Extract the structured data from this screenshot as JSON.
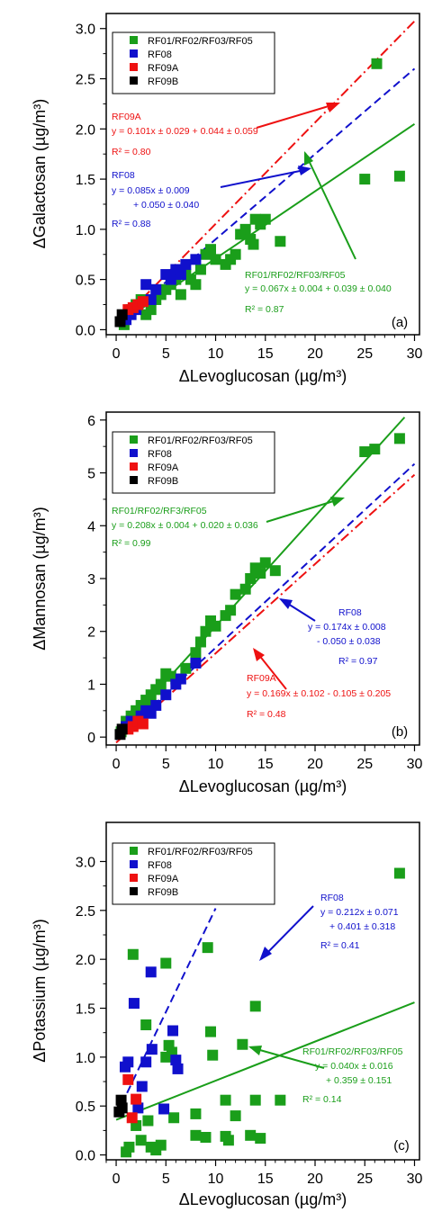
{
  "chart_data": [
    {
      "type": "scatter",
      "panel_label": "(a)",
      "xlabel": "ΔLevoglucosan (µg/m³)",
      "ylabel": "ΔGalactosan (µg/m³)",
      "xlim": [
        -1,
        30.5
      ],
      "ylim": [
        -0.05,
        3.15
      ],
      "xticks": [
        0,
        5,
        10,
        15,
        20,
        25,
        30
      ],
      "yticks": [
        0.0,
        0.5,
        1.0,
        1.5,
        2.0,
        2.5,
        3.0
      ],
      "ytick_labels": [
        "0.0",
        "0.5",
        "1.0",
        "1.5",
        "2.0",
        "2.5",
        "3.0"
      ],
      "legend": [
        "RF01/RF02/RF03/RF05",
        "RF08",
        "RF09A",
        "RF09B"
      ],
      "legend_position": "top-left",
      "series": [
        {
          "name": "RF01/RF02/RF03/RF05",
          "color": "#1a9e1a",
          "points": [
            [
              0.8,
              0.05
            ],
            [
              1.5,
              0.2
            ],
            [
              2,
              0.25
            ],
            [
              2.5,
              0.3
            ],
            [
              3,
              0.15
            ],
            [
              3.5,
              0.2
            ],
            [
              4,
              0.3
            ],
            [
              4.5,
              0.35
            ],
            [
              5,
              0.4
            ],
            [
              5.5,
              0.45
            ],
            [
              6,
              0.5
            ],
            [
              6.5,
              0.35
            ],
            [
              7,
              0.55
            ],
            [
              7.5,
              0.5
            ],
            [
              8,
              0.45
            ],
            [
              8.5,
              0.6
            ],
            [
              9,
              0.75
            ],
            [
              9.5,
              0.8
            ],
            [
              10,
              0.7
            ],
            [
              11,
              0.65
            ],
            [
              11.5,
              0.7
            ],
            [
              12,
              0.75
            ],
            [
              12.5,
              0.95
            ],
            [
              13,
              1.0
            ],
            [
              13.5,
              0.9
            ],
            [
              14,
              1.1
            ],
            [
              14.5,
              1.05
            ],
            [
              15,
              1.1
            ],
            [
              13.8,
              0.85
            ],
            [
              16.5,
              0.88
            ],
            [
              25,
              1.5
            ],
            [
              28.5,
              1.53
            ],
            [
              26.2,
              2.65
            ]
          ]
        },
        {
          "name": "RF08",
          "color": "#1010cc",
          "points": [
            [
              1,
              0.1
            ],
            [
              1.5,
              0.15
            ],
            [
              2,
              0.2
            ],
            [
              3,
              0.45
            ],
            [
              3.5,
              0.3
            ],
            [
              4,
              0.4
            ],
            [
              5,
              0.55
            ],
            [
              5.5,
              0.5
            ],
            [
              6,
              0.6
            ],
            [
              6.5,
              0.55
            ],
            [
              7,
              0.65
            ],
            [
              8,
              0.7
            ]
          ]
        },
        {
          "name": "RF09A",
          "color": "#ee1111",
          "points": [
            [
              1.2,
              0.2
            ],
            [
              1.7,
              0.22
            ],
            [
              2.2,
              0.25
            ],
            [
              2.7,
              0.28
            ]
          ]
        },
        {
          "name": "RF09B",
          "color": "#000000",
          "points": [
            [
              0.4,
              0.08
            ],
            [
              0.6,
              0.15
            ]
          ]
        }
      ],
      "fit_lines": [
        {
          "series": "RF01/RF02/RF03/RF05",
          "style": "solid",
          "color": "#1a9e1a",
          "slope": 0.067,
          "intercept": 0.039,
          "x_range": [
            0,
            30
          ]
        },
        {
          "series": "RF08",
          "style": "dashed",
          "color": "#1010cc",
          "slope": 0.085,
          "intercept": 0.05,
          "x_range": [
            0,
            30
          ]
        },
        {
          "series": "RF09A",
          "style": "dashdot",
          "color": "#ee1111",
          "slope": 0.101,
          "intercept": 0.044,
          "x_range": [
            0,
            30
          ]
        }
      ],
      "annotations": [
        {
          "color": "#ee1111",
          "lines": [
            "RF09A",
            "y = 0.101x ± 0.029 + 0.044 ± 0.059",
            "R² = 0.80"
          ]
        },
        {
          "color": "#1010cc",
          "lines": [
            "RF08",
            "y = 0.085x ± 0.009",
            "+ 0.050 ± 0.040",
            "R² = 0.88"
          ]
        },
        {
          "color": "#1a9e1a",
          "lines": [
            "RF01/RF02/RF03/RF05",
            "y = 0.067x ± 0.004 + 0.039 ± 0.040",
            "R² = 0.87"
          ]
        }
      ]
    },
    {
      "type": "scatter",
      "panel_label": "(b)",
      "xlabel": "ΔLevoglucosan (µg/m³)",
      "ylabel": "ΔMannosan (µg/m³)",
      "xlim": [
        -1,
        30.5
      ],
      "ylim": [
        -0.15,
        6.15
      ],
      "xticks": [
        0,
        5,
        10,
        15,
        20,
        25,
        30
      ],
      "yticks": [
        0,
        1,
        2,
        3,
        4,
        5,
        6
      ],
      "ytick_labels": [
        "0",
        "1",
        "2",
        "3",
        "4",
        "5",
        "6"
      ],
      "legend": [
        "RF01/RF02/RF03/RF05",
        "RF08",
        "RF09A",
        "RF09B"
      ],
      "legend_position": "top-left",
      "series": [
        {
          "name": "RF01/RF02/RF03/RF05",
          "color": "#1a9e1a",
          "points": [
            [
              0.5,
              0.1
            ],
            [
              1,
              0.3
            ],
            [
              1.5,
              0.4
            ],
            [
              2,
              0.5
            ],
            [
              2.5,
              0.6
            ],
            [
              3,
              0.7
            ],
            [
              3.5,
              0.8
            ],
            [
              4,
              0.9
            ],
            [
              4.5,
              1.0
            ],
            [
              5,
              1.2
            ],
            [
              5.5,
              1.15
            ],
            [
              6,
              1.1
            ],
            [
              7,
              1.3
            ],
            [
              8,
              1.6
            ],
            [
              8.5,
              1.8
            ],
            [
              9,
              2.0
            ],
            [
              9.5,
              2.2
            ],
            [
              10,
              2.1
            ],
            [
              11,
              2.3
            ],
            [
              11.5,
              2.4
            ],
            [
              12,
              2.7
            ],
            [
              13,
              2.8
            ],
            [
              13.5,
              3.0
            ],
            [
              14,
              3.2
            ],
            [
              14.5,
              3.1
            ],
            [
              15,
              3.3
            ],
            [
              16,
              3.15
            ],
            [
              25,
              5.4
            ],
            [
              26,
              5.45
            ],
            [
              28.5,
              5.65
            ]
          ]
        },
        {
          "name": "RF08",
          "color": "#1010cc",
          "points": [
            [
              1,
              0.2
            ],
            [
              1.5,
              0.3
            ],
            [
              2,
              0.25
            ],
            [
              2.5,
              0.4
            ],
            [
              3,
              0.5
            ],
            [
              3.5,
              0.45
            ],
            [
              4,
              0.6
            ],
            [
              5,
              0.8
            ],
            [
              6,
              1.0
            ],
            [
              6.5,
              1.1
            ],
            [
              8,
              1.4
            ]
          ]
        },
        {
          "name": "RF09A",
          "color": "#ee1111",
          "points": [
            [
              1.2,
              0.15
            ],
            [
              1.7,
              0.2
            ],
            [
              2.2,
              0.3
            ],
            [
              2.7,
              0.25
            ]
          ]
        },
        {
          "name": "RF09B",
          "color": "#000000",
          "points": [
            [
              0.4,
              0.05
            ],
            [
              0.6,
              0.15
            ]
          ]
        }
      ],
      "fit_lines": [
        {
          "series": "RF01/RF02/RF03/RF05",
          "style": "solid",
          "color": "#1a9e1a",
          "slope": 0.208,
          "intercept": 0.02,
          "x_range": [
            0,
            29
          ]
        },
        {
          "series": "RF08",
          "style": "dashed",
          "color": "#1010cc",
          "slope": 0.174,
          "intercept": -0.05,
          "x_range": [
            0,
            30
          ]
        },
        {
          "series": "RF09A",
          "style": "dashdot",
          "color": "#ee1111",
          "slope": 0.169,
          "intercept": -0.105,
          "x_range": [
            0,
            30
          ]
        }
      ],
      "annotations": [
        {
          "color": "#1a9e1a",
          "lines": [
            "RF01/RF02/RF3/RF05",
            "y = 0.208x ± 0.004 + 0.020 ± 0.036",
            "R² = 0.99"
          ]
        },
        {
          "color": "#1010cc",
          "lines": [
            "RF08",
            "y = 0.174x ± 0.008",
            "- 0.050 ± 0.038",
            "R² = 0.97"
          ]
        },
        {
          "color": "#ee1111",
          "lines": [
            "RF09A",
            "y = 0.169x ± 0.102 - 0.105 ± 0.205",
            "R² = 0.48"
          ]
        }
      ]
    },
    {
      "type": "scatter",
      "panel_label": "(c)",
      "xlabel": "ΔLevoglucosan (µg/m³)",
      "ylabel": "ΔPotassium (µg/m³)",
      "xlim": [
        -1,
        30.5
      ],
      "ylim": [
        -0.05,
        3.4
      ],
      "xticks": [
        0,
        5,
        10,
        15,
        20,
        25,
        30
      ],
      "yticks": [
        0.0,
        0.5,
        1.0,
        1.5,
        2.0,
        2.5,
        3.0
      ],
      "ytick_labels": [
        "0.0",
        "0.5",
        "1.0",
        "1.5",
        "2.0",
        "2.5",
        "3.0"
      ],
      "legend": [
        "RF01/RF02/RF03/RF05",
        "RF08",
        "RF09A",
        "RF09B"
      ],
      "legend_position": "top-left",
      "series": [
        {
          "name": "RF01/RF02/RF03/RF05",
          "color": "#1a9e1a",
          "points": [
            [
              1,
              0.03
            ],
            [
              1.3,
              0.08
            ],
            [
              1.7,
              2.05
            ],
            [
              2,
              0.3
            ],
            [
              2.5,
              0.15
            ],
            [
              3,
              1.33
            ],
            [
              3.2,
              0.35
            ],
            [
              3.5,
              0.08
            ],
            [
              4,
              0.05
            ],
            [
              4.5,
              0.1
            ],
            [
              5,
              1.96
            ],
            [
              5,
              1.0
            ],
            [
              5.3,
              1.12
            ],
            [
              5.6,
              1.05
            ],
            [
              5.8,
              0.38
            ],
            [
              8,
              0.42
            ],
            [
              8,
              0.2
            ],
            [
              9,
              0.18
            ],
            [
              9.2,
              2.12
            ],
            [
              9.5,
              1.26
            ],
            [
              9.7,
              1.02
            ],
            [
              11,
              0.56
            ],
            [
              11,
              0.19
            ],
            [
              11.3,
              0.15
            ],
            [
              12,
              0.4
            ],
            [
              12.7,
              1.13
            ],
            [
              13.5,
              0.2
            ],
            [
              14,
              0.56
            ],
            [
              14,
              1.52
            ],
            [
              14.5,
              0.17
            ],
            [
              16.5,
              0.56
            ],
            [
              28.5,
              2.88
            ]
          ]
        },
        {
          "name": "RF08",
          "color": "#1010cc",
          "points": [
            [
              0.9,
              0.9
            ],
            [
              1.2,
              0.95
            ],
            [
              1.8,
              1.55
            ],
            [
              2.2,
              0.48
            ],
            [
              2.6,
              0.7
            ],
            [
              3,
              0.95
            ],
            [
              3.5,
              1.87
            ],
            [
              3.6,
              1.08
            ],
            [
              4.8,
              0.47
            ],
            [
              5.7,
              1.27
            ],
            [
              6,
              0.97
            ],
            [
              6.2,
              0.88
            ]
          ]
        },
        {
          "name": "RF09A",
          "color": "#ee1111",
          "points": [
            [
              1.2,
              0.77
            ],
            [
              1.6,
              0.38
            ],
            [
              2,
              0.57
            ]
          ]
        },
        {
          "name": "RF09B",
          "color": "#000000",
          "points": [
            [
              0.3,
              0.44
            ],
            [
              0.5,
              0.56
            ],
            [
              0.6,
              0.48
            ]
          ]
        }
      ],
      "fit_lines": [
        {
          "series": "RF01/RF02/RF03/RF05",
          "style": "solid",
          "color": "#1a9e1a",
          "slope": 0.04,
          "intercept": 0.359,
          "x_range": [
            0,
            30
          ]
        },
        {
          "series": "RF08",
          "style": "dashed",
          "color": "#1010cc",
          "slope": 0.212,
          "intercept": 0.401,
          "x_range": [
            0,
            10
          ]
        }
      ],
      "annotations": [
        {
          "color": "#1010cc",
          "lines": [
            "RF08",
            "y = 0.212x ± 0.071",
            "+ 0.401 ± 0.318",
            "R² = 0.41"
          ]
        },
        {
          "color": "#1a9e1a",
          "lines": [
            "RF01/RF02/RF03/RF05",
            "y = 0.040x ± 0.016",
            "+ 0.359 ± 0.151",
            "R² = 0.14"
          ]
        }
      ]
    }
  ]
}
